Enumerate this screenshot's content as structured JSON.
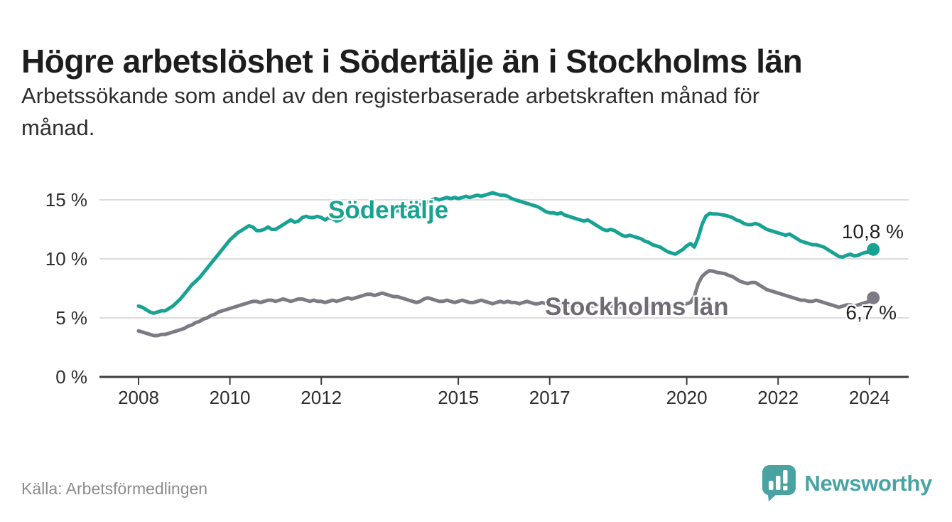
{
  "header": {
    "title": "Högre arbetslöshet i Södertälje än i Stockholms län",
    "subtitle_line1": "Arbetssökande som andel av den registerbaserade arbetskraften månad för",
    "subtitle_line2": "månad."
  },
  "footer": {
    "source": "Källa: Arbetsförmedlingen",
    "brand": "Newsworthy"
  },
  "colors": {
    "sodertalje": "#18a294",
    "stockholm_line": "#7e7a84",
    "grid": "#dcdcdc",
    "axis": "#3d3d3d",
    "tick_text": "#2d2d2d",
    "brand_teal": "#48a3a2"
  },
  "chart_data": {
    "type": "line",
    "title": "Högre arbetslöshet i Södertälje än i Stockholms län",
    "subtitle": "Arbetssökande som andel av den registerbaserade arbetskraften månad för månad.",
    "x_unit": "month",
    "x_start": "2008-01",
    "x_end": "2024-02",
    "x_tick_years": [
      2008,
      2010,
      2012,
      2015,
      2017,
      2020,
      2022,
      2024
    ],
    "y_tick_values": [
      0,
      5,
      10,
      15
    ],
    "y_tick_labels": [
      "0 %",
      "5 %",
      "10 %",
      "15 %"
    ],
    "ylim": [
      0,
      16.2
    ],
    "grid": "horizontal",
    "legend_position": "inline-labels",
    "series": [
      {
        "name": "Södertälje",
        "color": "#18a294",
        "end_label": "10,8 %",
        "end_value": 10.8,
        "values": [
          6.0,
          5.9,
          5.7,
          5.5,
          5.4,
          5.5,
          5.6,
          5.6,
          5.8,
          6.0,
          6.3,
          6.6,
          7.0,
          7.4,
          7.8,
          8.1,
          8.4,
          8.8,
          9.2,
          9.6,
          10.0,
          10.4,
          10.8,
          11.2,
          11.6,
          11.9,
          12.2,
          12.4,
          12.6,
          12.8,
          12.7,
          12.4,
          12.4,
          12.5,
          12.7,
          12.5,
          12.5,
          12.7,
          12.9,
          13.1,
          13.3,
          13.1,
          13.2,
          13.5,
          13.6,
          13.5,
          13.5,
          13.6,
          13.5,
          13.3,
          13.5,
          13.4,
          13.2,
          13.3,
          13.6,
          13.7,
          13.6,
          13.5,
          13.6,
          13.7,
          13.6,
          13.7,
          13.8,
          13.7,
          13.6,
          13.8,
          13.9,
          14.0,
          14.1,
          14.0,
          14.2,
          14.3,
          14.4,
          14.5,
          14.6,
          14.7,
          14.8,
          15.0,
          15.1,
          15.0,
          15.1,
          15.2,
          15.1,
          15.2,
          15.1,
          15.2,
          15.3,
          15.2,
          15.3,
          15.4,
          15.3,
          15.4,
          15.5,
          15.6,
          15.5,
          15.4,
          15.4,
          15.3,
          15.1,
          15.0,
          14.9,
          14.8,
          14.7,
          14.6,
          14.5,
          14.4,
          14.2,
          14.0,
          13.9,
          13.9,
          13.8,
          13.9,
          13.7,
          13.6,
          13.5,
          13.4,
          13.3,
          13.2,
          13.3,
          13.1,
          12.9,
          12.7,
          12.5,
          12.4,
          12.5,
          12.4,
          12.2,
          12.0,
          11.9,
          12.0,
          11.9,
          11.8,
          11.7,
          11.5,
          11.4,
          11.2,
          11.1,
          11.0,
          10.8,
          10.6,
          10.5,
          10.4,
          10.6,
          10.8,
          11.1,
          11.3,
          11.0,
          11.8,
          12.9,
          13.6,
          13.85,
          13.8,
          13.8,
          13.75,
          13.7,
          13.6,
          13.5,
          13.3,
          13.2,
          13.0,
          12.9,
          12.9,
          13.0,
          12.9,
          12.7,
          12.5,
          12.4,
          12.3,
          12.2,
          12.1,
          12.0,
          12.1,
          11.9,
          11.7,
          11.5,
          11.4,
          11.3,
          11.2,
          11.2,
          11.1,
          11.0,
          10.8,
          10.6,
          10.4,
          10.2,
          10.15,
          10.3,
          10.4,
          10.25,
          10.3,
          10.45,
          10.55,
          10.6,
          10.8
        ]
      },
      {
        "name": "Stockholms län",
        "color": "#7e7a84",
        "end_label": "6,7 %",
        "end_value": 6.7,
        "values": [
          3.9,
          3.8,
          3.7,
          3.6,
          3.5,
          3.5,
          3.6,
          3.6,
          3.7,
          3.8,
          3.9,
          4.0,
          4.1,
          4.3,
          4.4,
          4.6,
          4.7,
          4.9,
          5.0,
          5.2,
          5.3,
          5.5,
          5.6,
          5.7,
          5.8,
          5.9,
          6.0,
          6.1,
          6.2,
          6.3,
          6.4,
          6.4,
          6.3,
          6.4,
          6.5,
          6.5,
          6.4,
          6.5,
          6.6,
          6.5,
          6.4,
          6.5,
          6.6,
          6.6,
          6.5,
          6.4,
          6.5,
          6.4,
          6.4,
          6.3,
          6.4,
          6.5,
          6.4,
          6.5,
          6.6,
          6.7,
          6.6,
          6.7,
          6.8,
          6.9,
          7.0,
          7.0,
          6.9,
          7.0,
          7.1,
          7.0,
          6.9,
          6.8,
          6.8,
          6.7,
          6.6,
          6.5,
          6.4,
          6.3,
          6.4,
          6.6,
          6.7,
          6.6,
          6.5,
          6.4,
          6.4,
          6.5,
          6.4,
          6.3,
          6.4,
          6.5,
          6.4,
          6.3,
          6.3,
          6.4,
          6.5,
          6.4,
          6.3,
          6.2,
          6.3,
          6.4,
          6.3,
          6.4,
          6.3,
          6.3,
          6.2,
          6.3,
          6.4,
          6.3,
          6.2,
          6.2,
          6.3,
          6.2,
          6.2,
          6.1,
          6.2,
          6.1,
          6.0,
          6.1,
          6.2,
          6.1,
          6.0,
          6.0,
          6.1,
          6.0,
          6.0,
          6.1,
          6.0,
          5.9,
          6.0,
          6.0,
          5.9,
          5.9,
          6.0,
          5.9,
          6.0,
          5.9,
          6.0,
          5.9,
          6.0,
          6.0,
          6.1,
          6.0,
          6.1,
          6.1,
          6.0,
          6.1,
          6.1,
          6.2,
          6.2,
          6.3,
          6.8,
          7.9,
          8.5,
          8.8,
          9.0,
          8.95,
          8.85,
          8.8,
          8.75,
          8.6,
          8.5,
          8.3,
          8.1,
          8.0,
          7.9,
          8.0,
          8.0,
          7.8,
          7.6,
          7.4,
          7.3,
          7.2,
          7.1,
          7.0,
          6.9,
          6.8,
          6.7,
          6.6,
          6.5,
          6.5,
          6.4,
          6.4,
          6.5,
          6.4,
          6.3,
          6.2,
          6.1,
          6.0,
          5.9,
          6.0,
          6.1,
          6.1,
          6.0,
          6.1,
          6.2,
          6.3,
          6.4,
          6.7
        ]
      }
    ]
  }
}
